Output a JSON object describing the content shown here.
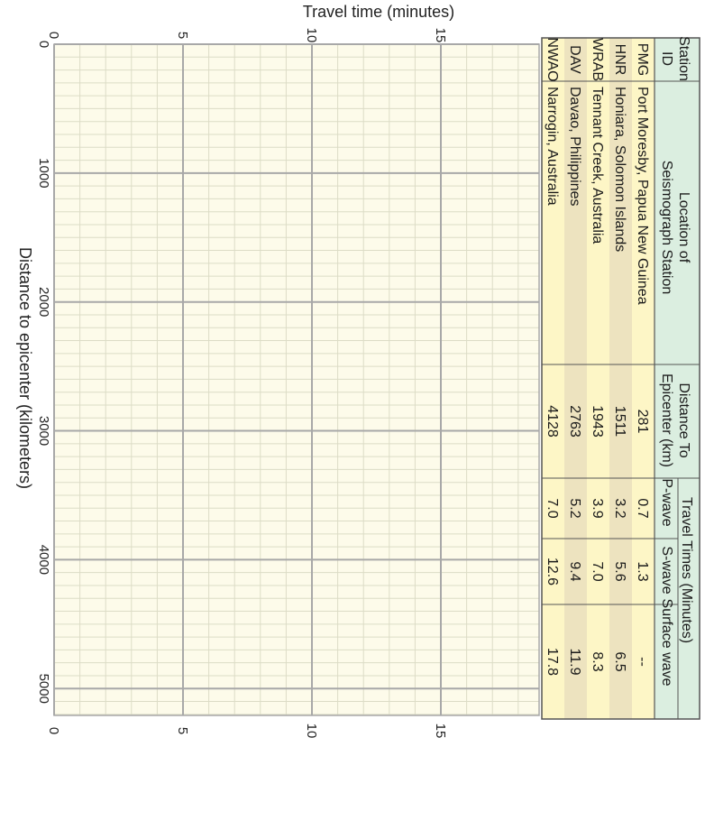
{
  "colors": {
    "paper": "#fdfbea",
    "grid_minor": "#dcdcc6",
    "grid_major": "#a8a8a8",
    "table_header": "#dbeee0",
    "table_row_light": "#fdf6c6",
    "table_row_dark": "#ede3bf",
    "table_border": "#555555"
  },
  "graph": {
    "xlabel": "Distance to epicenter (kilometers)",
    "ylabel": "Travel time (minutes)",
    "x_ticks": [
      "0",
      "1000",
      "2000",
      "3000",
      "4000",
      "5000"
    ],
    "y_ticks": [
      "0",
      "5",
      "10",
      "15"
    ],
    "xlim": [
      0,
      5200
    ],
    "ylim": [
      0,
      19
    ],
    "major_x_step": 1000,
    "minor_x_step": 100,
    "major_y_step": 5,
    "minor_y_step": 1,
    "orientation": "rotated 90 degrees clockwise"
  },
  "chart_data": {
    "type": "table",
    "headers": {
      "station_id": "Station ID",
      "location": "Location of Seismograph Station",
      "distance": "Distance To Epicenter (km)",
      "travel_times": "Travel Times (Minutes)",
      "p_wave": "P-wave",
      "s_wave": "S-wave",
      "surface_wave": "Surface wave"
    },
    "rows": [
      {
        "id": "PMG",
        "location": "Port Moresby, Papua New Guinea",
        "distance": "281",
        "p": "0.7",
        "s": "1.3",
        "surface": "--"
      },
      {
        "id": "HNR",
        "location": "Honiara, Solomon Islands",
        "distance": "1511",
        "p": "3.2",
        "s": "5.6",
        "surface": "6.5"
      },
      {
        "id": "WRAB",
        "location": "Tennant Creek, Australia",
        "distance": "1943",
        "p": "3.9",
        "s": "7.0",
        "surface": "8.3"
      },
      {
        "id": "DAV",
        "location": "Davao, Philippines",
        "distance": "2763",
        "p": "5.2",
        "s": "9.4",
        "surface": "11.9"
      },
      {
        "id": "NWAO",
        "location": "Narrogin, Australia",
        "distance": "4128",
        "p": "7.0",
        "s": "12.6",
        "surface": "17.8"
      }
    ]
  }
}
